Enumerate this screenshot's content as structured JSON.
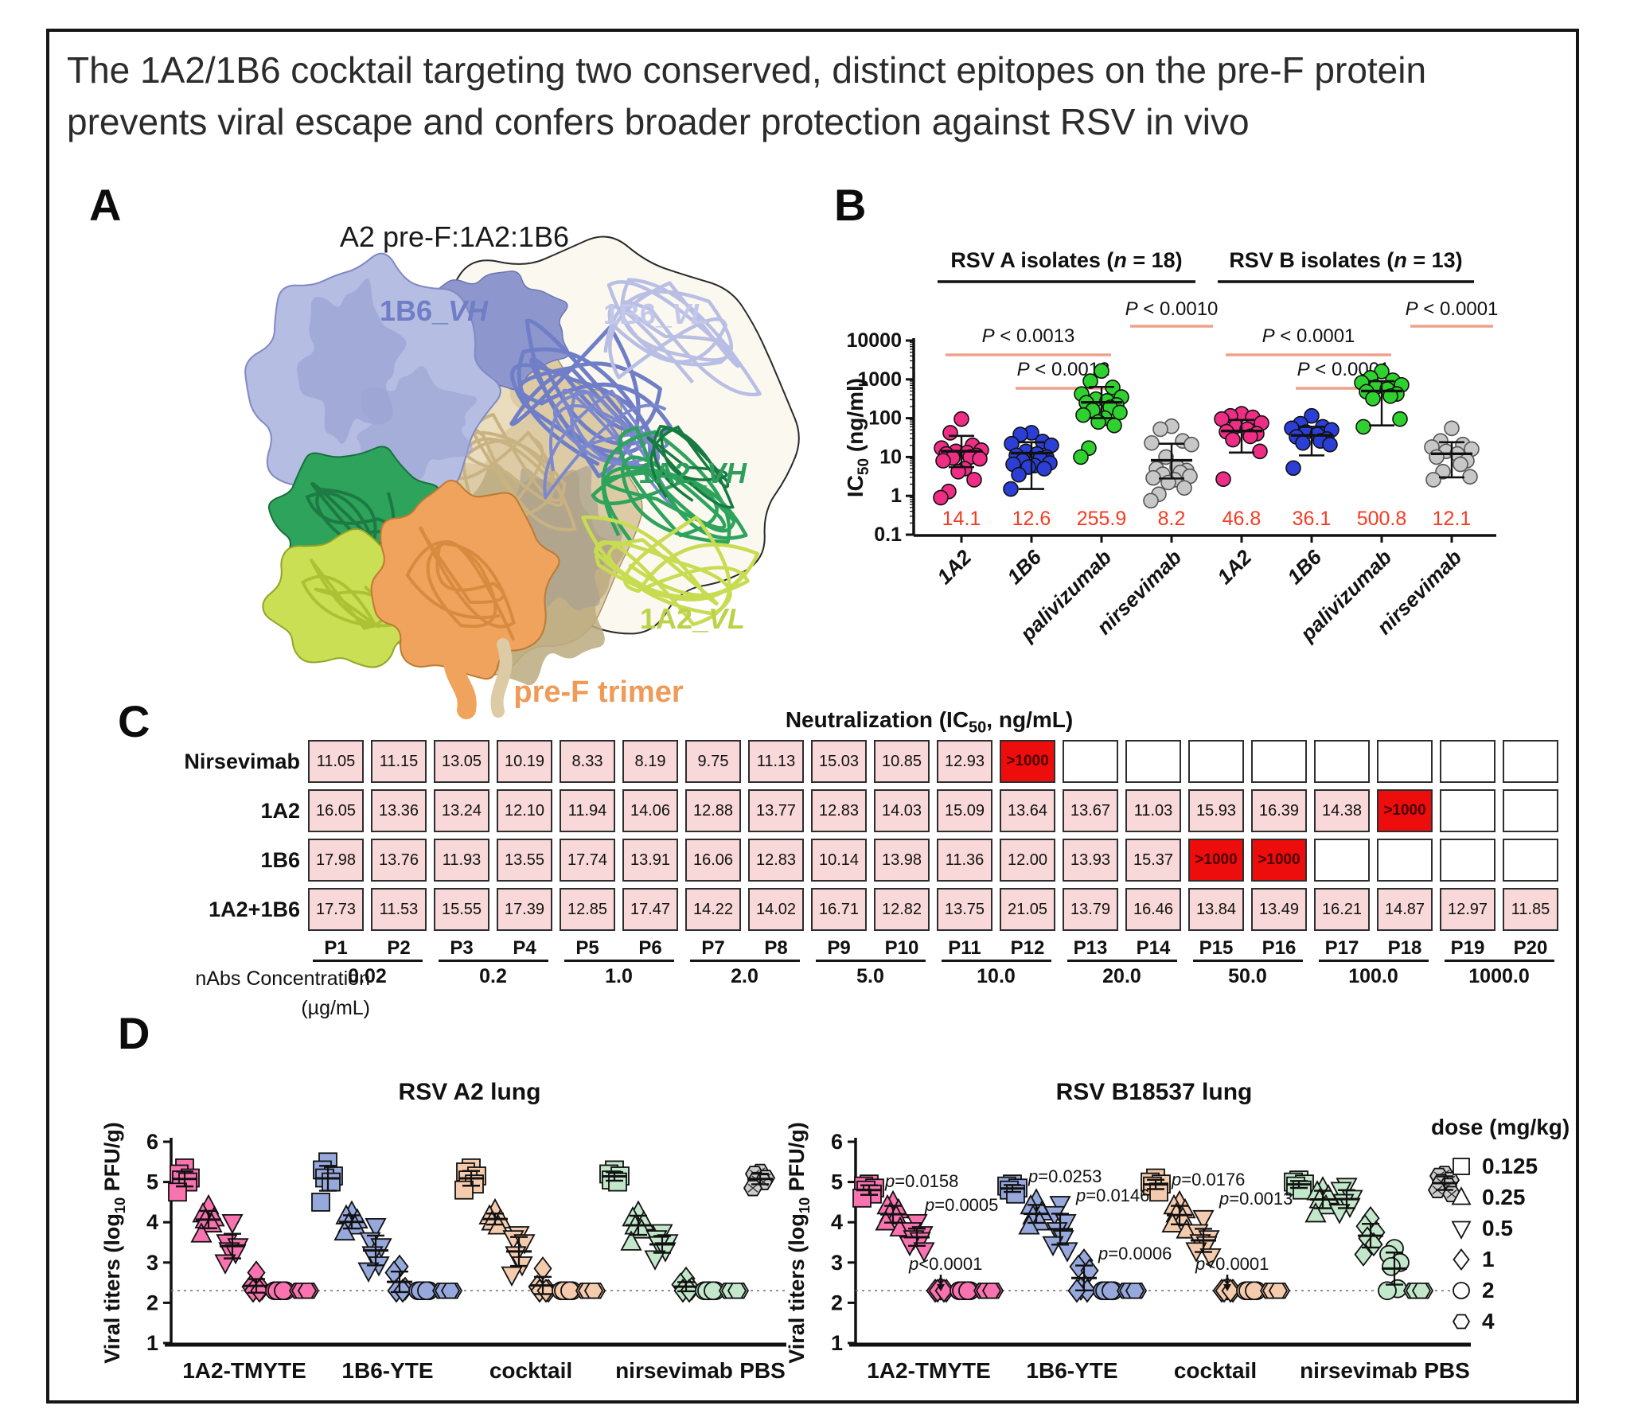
{
  "figure": {
    "title_line1": "The 1A2/1B6 cocktail targeting two conserved, distinct epitopes on the pre-F protein",
    "title_line2": "prevents viral escape and confers broader protection against RSV in vivo"
  },
  "panels": {
    "A": "A",
    "B": "B",
    "C": "C",
    "D": "D"
  },
  "panelA": {
    "title": "A2 pre-F:1A2:1B6",
    "labels": [
      {
        "id": "1B6-VH",
        "pre": "1B6_",
        "it": "VH",
        "color": "#6f7ec6"
      },
      {
        "id": "1B6-VL",
        "pre": "1B6_",
        "it": "VL",
        "color": "#c3c8ea"
      },
      {
        "id": "1A2-VH",
        "pre": "1A2_",
        "it": "VH",
        "color": "#2d9e5c"
      },
      {
        "id": "1A2-VL",
        "pre": "1A2_",
        "it": "VL",
        "color": "#bdd24b"
      },
      {
        "id": "pre-F-trimer",
        "pre": "pre-F trimer",
        "it": "",
        "color": "#f09a57"
      }
    ]
  },
  "legend": {
    "title": "dose (mg/kg)",
    "items": [
      {
        "shape": "square",
        "label": "0.125"
      },
      {
        "shape": "tri-up",
        "label": "0.25"
      },
      {
        "shape": "tri-down",
        "label": "0.5"
      },
      {
        "shape": "diamond",
        "label": "1"
      },
      {
        "shape": "circle",
        "label": "2"
      },
      {
        "shape": "hexagon",
        "label": "4"
      }
    ]
  },
  "chart_data": [
    {
      "id": "B",
      "type": "scatter",
      "yscale": "log",
      "ylabel": "IC50 (ng/ml)",
      "ylabel_parts": {
        "pre": "IC",
        "sub": "50",
        "post": " (ng/ml)"
      },
      "ylim": [
        0.1,
        10000
      ],
      "yticks": [
        "10000",
        "1000",
        "100",
        "10",
        "1",
        "0.1"
      ],
      "group_headers": [
        {
          "pre": "RSV A isolates (",
          "it": "n",
          "post": " = 18)"
        },
        {
          "pre": "RSV B isolates (",
          "it": "n",
          "post": " = 13)"
        }
      ],
      "categories": [
        "1A2",
        "1B6",
        "palivizumab",
        "nirsevimab",
        "1A2",
        "1B6",
        "palivizumab",
        "nirsevimab"
      ],
      "colors": [
        "#ee2d84",
        "#2b3fd6",
        "#2ed12e",
        "#c7c7c7",
        "#ee2d84",
        "#2b3fd6",
        "#2ed12e",
        "#c7c7c7"
      ],
      "geo_mean_labels": [
        "14.1",
        "12.6",
        "255.9",
        "8.2",
        "46.8",
        "36.1",
        "500.8",
        "12.1"
      ],
      "mean_label_color": "#f63b22",
      "bracket_color": "#f0a189",
      "error_bars": [
        {
          "mid": 14.1,
          "lo": 5.5,
          "hi": 35
        },
        {
          "mid": 12.6,
          "lo": 1.5,
          "hi": 24
        },
        {
          "mid": 255.9,
          "lo": 100,
          "hi": 640
        },
        {
          "mid": 8.2,
          "lo": 2.8,
          "hi": 22
        },
        {
          "mid": 46.8,
          "lo": 13,
          "hi": 90
        },
        {
          "mid": 36.1,
          "lo": 11,
          "hi": 60
        },
        {
          "mid": 500.8,
          "lo": 65,
          "hi": 900
        },
        {
          "mid": 12.1,
          "lo": 3,
          "hi": 24
        }
      ],
      "series": [
        {
          "name": "1A2 (RSV A)",
          "values": [
            95,
            42,
            20,
            17,
            15,
            14,
            13,
            12,
            11,
            10,
            9.5,
            9,
            8,
            5,
            4.2,
            2.6,
            1.3,
            0.9
          ]
        },
        {
          "name": "1B6 (RSV A)",
          "values": [
            42,
            38,
            25,
            22,
            20,
            14,
            12,
            11,
            10,
            9,
            8,
            7,
            6.5,
            6,
            5.5,
            5,
            3.5,
            1.5
          ]
        },
        {
          "name": "palivizumab (RSV A)",
          "values": [
            1650,
            900,
            620,
            420,
            350,
            310,
            280,
            250,
            220,
            190,
            160,
            140,
            120,
            100,
            80,
            65,
            17,
            10
          ]
        },
        {
          "name": "nirsevimab (RSV A)",
          "values": [
            62,
            52,
            26,
            23,
            21,
            10,
            5.5,
            5,
            4.5,
            4,
            3.6,
            3.2,
            2.9,
            2.6,
            2.2,
            1.6,
            1.1,
            0.75
          ]
        },
        {
          "name": "1A2 (RSV B)",
          "values": [
            130,
            115,
            105,
            95,
            75,
            62,
            52,
            45,
            40,
            34,
            28,
            14,
            2.7
          ]
        },
        {
          "name": "1B6 (RSV B)",
          "values": [
            115,
            72,
            60,
            55,
            50,
            44,
            38,
            33,
            29,
            26,
            23,
            21,
            5.2
          ]
        },
        {
          "name": "palivizumab (RSV B)",
          "values": [
            1600,
            1100,
            950,
            820,
            720,
            640,
            560,
            480,
            420,
            370,
            320,
            95,
            60
          ]
        },
        {
          "name": "nirsevimab (RSV B)",
          "values": [
            55,
            26,
            21,
            18,
            16,
            14,
            12,
            10,
            8,
            6.5,
            4.2,
            3.1,
            2.6
          ]
        }
      ],
      "significance": [
        {
          "label": "P < 0.0013",
          "from": 0,
          "to": 2,
          "level": "mid"
        },
        {
          "label": "P < 0.0012",
          "from": 1,
          "to": 2,
          "level": "low"
        },
        {
          "label": "P < 0.0010",
          "from": 2,
          "to": 3,
          "level": "top"
        },
        {
          "label": "P < 0.0001",
          "from": 4,
          "to": 6,
          "level": "mid"
        },
        {
          "label": "P < 0.0001",
          "from": 5,
          "to": 6,
          "level": "low"
        },
        {
          "label": "P < 0.0001",
          "from": 6,
          "to": 7,
          "level": "top"
        }
      ]
    },
    {
      "id": "C",
      "type": "heatmap",
      "title_parts": {
        "pre": "Neutralization (IC",
        "sub": "50",
        "post": ", ng/mL)"
      },
      "rows": [
        "Nirsevimab",
        "1A2",
        "1B6",
        "1A2+1B6"
      ],
      "columns": [
        "P1",
        "P2",
        "P3",
        "P4",
        "P5",
        "P6",
        "P7",
        "P8",
        "P9",
        "P10",
        "P11",
        "P12",
        "P13",
        "P14",
        "P15",
        "P16",
        "P17",
        "P18",
        "P19",
        "P20"
      ],
      "values": [
        [
          "11.05",
          "11.15",
          "13.05",
          "10.19",
          "8.33",
          "8.19",
          "9.75",
          "11.13",
          "15.03",
          "10.85",
          "12.93",
          ">1000",
          "",
          "",
          "",
          "",
          "",
          "",
          "",
          ""
        ],
        [
          "16.05",
          "13.36",
          "13.24",
          "12.10",
          "11.94",
          "14.06",
          "12.88",
          "13.77",
          "12.83",
          "14.03",
          "15.09",
          "13.64",
          "13.67",
          "11.03",
          "15.93",
          "16.39",
          "14.38",
          ">1000",
          "",
          ""
        ],
        [
          "17.98",
          "13.76",
          "11.93",
          "13.55",
          "17.74",
          "13.91",
          "16.06",
          "12.83",
          "10.14",
          "13.98",
          "11.36",
          "12.00",
          "13.93",
          "15.37",
          ">1000",
          ">1000",
          "",
          "",
          "",
          ""
        ],
        [
          "17.73",
          "11.53",
          "15.55",
          "17.39",
          "12.85",
          "17.47",
          "14.22",
          "14.02",
          "16.71",
          "12.82",
          "13.75",
          "21.05",
          "13.79",
          "16.46",
          "13.84",
          "13.49",
          "16.21",
          "14.87",
          "12.97",
          "11.85"
        ]
      ],
      "highlight_value": ">1000",
      "axis_label_line1": "nAbs Concentration",
      "axis_label_line2": "(µg/mL)",
      "concentration_groups": [
        "0.02",
        "0.2",
        "1.0",
        "2.0",
        "5.0",
        "10.0",
        "20.0",
        "50.0",
        "100.0",
        "1000.0"
      ],
      "colors": {
        "cell": "#f8d8d8",
        "highlight": "#ee0d0d",
        "empty": "#ffffff"
      }
    },
    {
      "id": "D-left",
      "type": "scatter",
      "title": "RSV A2 lung",
      "ylabel": "Viral titers (log10 PFU/g)",
      "ylabel_parts": {
        "pre": "Viral titers (log",
        "sub": "10",
        "post": " PFU/g)"
      },
      "ylim": [
        1,
        6
      ],
      "yticks": [
        1,
        2,
        3,
        4,
        5,
        6
      ],
      "lod": 2.3,
      "dose_keys": [
        "0.125",
        "0.25",
        "0.5",
        "1",
        "2",
        "4"
      ],
      "groups": [
        {
          "name": "1A2-TMYTE",
          "color": "#f873af",
          "doses": {
            "0.125": [
              5.35,
              5.2,
              5.1,
              5.05,
              5.0,
              4.75
            ],
            "0.25": [
              4.4,
              4.2,
              4.1,
              4.05,
              3.95,
              3.7
            ],
            "0.5": [
              4.0,
              3.5,
              3.4,
              3.3,
              3.25,
              3.0
            ],
            "1": [
              2.75,
              2.4,
              2.35,
              2.3,
              2.3
            ],
            "2": [
              2.3,
              2.3,
              2.3,
              2.3,
              2.3
            ],
            "4": [
              2.3,
              2.3,
              2.3,
              2.3,
              2.3
            ]
          }
        },
        {
          "name": "1B6-YTE",
          "color": "#97a9dc",
          "doses": {
            "0.125": [
              5.5,
              5.3,
              5.15,
              5.1,
              5.0,
              4.5
            ],
            "0.25": [
              4.25,
              4.15,
              4.05,
              3.95,
              3.9,
              3.75
            ],
            "0.5": [
              3.9,
              3.55,
              3.4,
              3.2,
              2.95,
              2.8
            ],
            "1": [
              2.9,
              2.75,
              2.35,
              2.3,
              2.3
            ],
            "2": [
              2.3,
              2.3,
              2.3,
              2.3,
              2.3
            ],
            "4": [
              2.3,
              2.3,
              2.3,
              2.3,
              2.3
            ]
          }
        },
        {
          "name": "cocktail",
          "color": "#f5cbae",
          "doses": {
            "0.125": [
              5.35,
              5.25,
              5.15,
              5.05,
              4.95,
              4.8
            ],
            "0.25": [
              4.3,
              4.15,
              4.05,
              4.0,
              3.9
            ],
            "0.5": [
              3.7,
              3.6,
              3.5,
              3.2,
              2.95,
              2.7
            ],
            "1": [
              2.85,
              2.4,
              2.3,
              2.3,
              2.3
            ],
            "2": [
              2.3,
              2.3,
              2.3,
              2.3,
              2.3
            ],
            "4": [
              2.3,
              2.3,
              2.3,
              2.3,
              2.3
            ]
          }
        },
        {
          "name": "nirsevimab",
          "color": "#c2e7cb",
          "doses": {
            "0.125": [
              5.3,
              5.2,
              5.15,
              5.05,
              5.0
            ],
            "0.25": [
              4.25,
              4.1,
              4.0,
              3.9,
              3.8,
              3.5
            ],
            "0.5": [
              3.75,
              3.6,
              3.5,
              3.45,
              3.3,
              3.1
            ],
            "1": [
              2.6,
              2.45,
              2.35,
              2.3,
              2.3
            ],
            "2": [
              2.3,
              2.3,
              2.3,
              2.3,
              2.3
            ],
            "4": [
              2.3,
              2.3,
              2.3,
              2.3,
              2.3
            ]
          }
        },
        {
          "name": "PBS",
          "color": "#cccccc",
          "doses": {
            "4": [
              5.25,
              5.2,
              5.1,
              5.05,
              5.0,
              4.85
            ]
          }
        }
      ],
      "annotations": []
    },
    {
      "id": "D-right",
      "type": "scatter",
      "title": "RSV B18537 lung",
      "ylabel": "Viral titers (log10 PFU/g)",
      "ylabel_parts": {
        "pre": "Viral titers (log",
        "sub": "10",
        "post": " PFU/g)"
      },
      "ylim": [
        1,
        6
      ],
      "yticks": [
        1,
        2,
        3,
        4,
        5,
        6
      ],
      "lod": 2.3,
      "dose_keys": [
        "0.125",
        "0.25",
        "0.5",
        "1",
        "2",
        "4"
      ],
      "groups": [
        {
          "name": "1A2-TMYTE",
          "color": "#f873af",
          "doses": {
            "0.125": [
              4.95,
              4.9,
              4.85,
              4.8,
              4.7,
              4.6
            ],
            "0.25": [
              4.5,
              4.4,
              4.3,
              4.2,
              4.15,
              4.0,
              3.85
            ],
            "0.5": [
              4.0,
              3.8,
              3.7,
              3.6,
              3.55,
              3.45,
              3.3
            ],
            "1": [
              2.35,
              2.3,
              2.3,
              2.3,
              2.3
            ],
            "2": [
              2.3,
              2.3,
              2.3,
              2.3,
              2.3
            ],
            "4": [
              2.3,
              2.3,
              2.3,
              2.3,
              2.3
            ]
          }
        },
        {
          "name": "1B6-YTE",
          "color": "#97a9dc",
          "doses": {
            "0.125": [
              4.95,
              4.9,
              4.85,
              4.8,
              4.7
            ],
            "0.25": [
              4.55,
              4.4,
              4.25,
              4.15,
              4.0,
              3.9
            ],
            "0.5": [
              4.45,
              4.2,
              4.0,
              3.8,
              3.6,
              3.45,
              3.3
            ],
            "1": [
              3.05,
              2.9,
              2.8,
              2.35,
              2.3,
              2.3
            ],
            "2": [
              2.3,
              2.3,
              2.3,
              2.3,
              2.3
            ],
            "4": [
              2.3,
              2.3,
              2.3,
              2.3,
              2.3
            ]
          }
        },
        {
          "name": "cocktail",
          "color": "#f5cbae",
          "doses": {
            "0.125": [
              5.1,
              5.0,
              4.95,
              4.9,
              4.75
            ],
            "0.25": [
              4.5,
              4.4,
              4.3,
              4.2,
              4.1,
              3.95,
              3.8
            ],
            "0.5": [
              4.1,
              3.75,
              3.6,
              3.5,
              3.45,
              3.3,
              3.15
            ],
            "1": [
              2.35,
              2.3,
              2.3,
              2.3,
              2.3
            ],
            "2": [
              2.3,
              2.3,
              2.3,
              2.3,
              2.3
            ],
            "4": [
              2.3,
              2.3,
              2.3,
              2.3,
              2.3
            ]
          }
        },
        {
          "name": "nirsevimab",
          "color": "#c2e7cb",
          "doses": {
            "0.125": [
              5.05,
              5.0,
              4.95,
              4.9,
              4.8
            ],
            "0.25": [
              4.85,
              4.75,
              4.65,
              4.55,
              4.4,
              4.2
            ],
            "0.5": [
              4.9,
              4.8,
              4.6,
              4.5,
              4.4,
              4.25
            ],
            "1": [
              4.1,
              3.9,
              3.75,
              3.6,
              3.45,
              3.2
            ],
            "2": [
              3.35,
              3.2,
              3.0,
              2.9,
              2.35,
              2.3
            ],
            "4": [
              2.3,
              2.3,
              2.3,
              2.3,
              2.3
            ]
          }
        },
        {
          "name": "PBS",
          "color": "#cccccc",
          "doses": {
            "4": [
              5.2,
              5.15,
              5.05,
              5.0,
              4.9,
              4.8,
              4.7
            ]
          }
        }
      ],
      "annotations": [
        {
          "text": "p=0.0158",
          "x": 132,
          "y": 152
        },
        {
          "text": "p=0.0005",
          "x": 182,
          "y": 182
        },
        {
          "text": "p<0.0001",
          "x": 162,
          "y": 256,
          "arrow": {
            "x": 202,
            "y1": 262,
            "y2": 274
          }
        },
        {
          "text": "p=0.0253",
          "x": 312,
          "y": 146
        },
        {
          "text": "p=0.0146",
          "x": 372,
          "y": 170
        },
        {
          "text": "p=0.0006",
          "x": 400,
          "y": 243
        },
        {
          "text": "p=0.0176",
          "x": 492,
          "y": 150
        },
        {
          "text": "p=0.0013",
          "x": 552,
          "y": 174
        },
        {
          "text": "p<0.0001",
          "x": 522,
          "y": 256,
          "arrow": {
            "x": 562,
            "y1": 262,
            "y2": 274
          }
        }
      ]
    }
  ]
}
